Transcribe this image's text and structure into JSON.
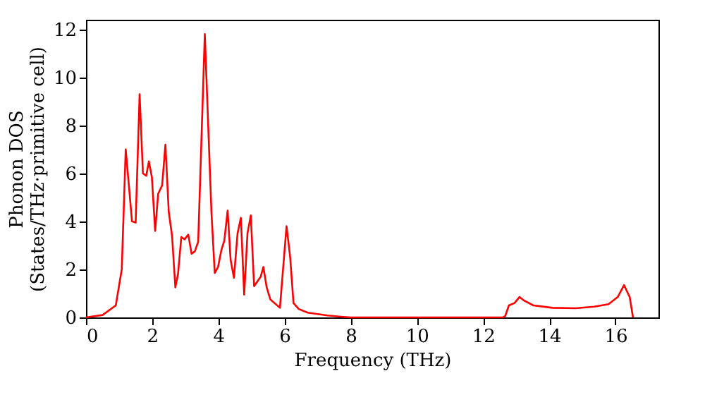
{
  "chart_data": {
    "type": "line",
    "xlabel": "Frequency (THz)",
    "ylabel": "Phonon DOS\n(States/THz·primitive cell)",
    "x": [
      0,
      0.5,
      0.9,
      1.08,
      1.2,
      1.39,
      1.5,
      1.62,
      1.72,
      1.82,
      1.9,
      1.99,
      2.09,
      2.18,
      2.3,
      2.4,
      2.5,
      2.6,
      2.7,
      2.78,
      2.88,
      2.98,
      3.09,
      3.19,
      3.29,
      3.39,
      3.59,
      3.79,
      3.89,
      3.99,
      4.09,
      4.18,
      4.28,
      4.37,
      4.47,
      4.58,
      4.68,
      4.78,
      4.88,
      4.98,
      5.08,
      5.18,
      5.28,
      5.36,
      5.46,
      5.57,
      5.86,
      6.06,
      6.17,
      6.27,
      6.43,
      6.7,
      7.3,
      7.7,
      8.0,
      12.0,
      12.6,
      12.67,
      12.78,
      12.95,
      13.1,
      13.24,
      13.52,
      14.09,
      14.8,
      15.36,
      15.79,
      16.07,
      16.26,
      16.36,
      16.43,
      16.53
    ],
    "series": [
      {
        "color": "#ff0000",
        "values": [
          0,
          0.1,
          0.5,
          2.0,
          7.0,
          4.0,
          3.95,
          9.3,
          6.0,
          5.9,
          6.5,
          5.85,
          3.6,
          5.15,
          5.5,
          7.2,
          4.4,
          3.4,
          1.25,
          1.8,
          3.35,
          3.25,
          3.45,
          2.65,
          2.75,
          3.15,
          11.8,
          4.4,
          1.85,
          2.1,
          2.8,
          3.2,
          4.45,
          2.4,
          1.65,
          3.5,
          4.15,
          0.95,
          3.5,
          4.25,
          1.3,
          1.5,
          1.7,
          2.1,
          1.25,
          0.75,
          0.4,
          3.8,
          2.5,
          0.6,
          0.35,
          0.2,
          0.08,
          0.03,
          0,
          0,
          0,
          0.06,
          0.5,
          0.6,
          0.85,
          0.7,
          0.5,
          0.4,
          0.38,
          0.45,
          0.55,
          0.85,
          1.35,
          1.05,
          0.85,
          0
        ]
      }
    ],
    "xlim": [
      0,
      17.3
    ],
    "ylim": [
      0,
      12.4
    ],
    "xticks": [
      0,
      2,
      4,
      6,
      8,
      10,
      12,
      14,
      16
    ],
    "yticks": [
      0,
      2,
      4,
      6,
      8,
      10,
      12
    ],
    "grid": false,
    "line_style": "solid",
    "marker": "none"
  }
}
